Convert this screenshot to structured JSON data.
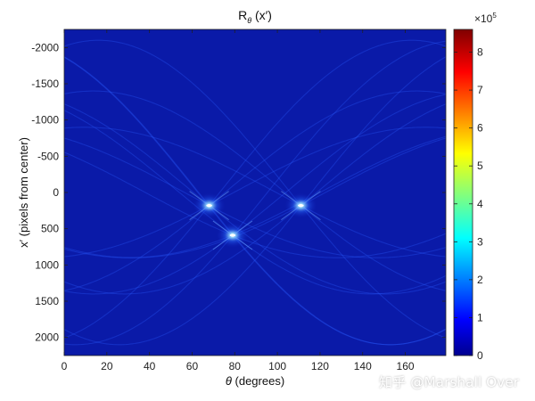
{
  "chart_data": {
    "type": "heatmap",
    "title": "R",
    "title_subscript": "θ",
    "title_suffix": " (x′)",
    "xlabel_symbol": "θ",
    "xlabel_rest": " (degrees)",
    "ylabel": "x′ (pixels from center)",
    "x_ticks": [
      "0",
      "20",
      "40",
      "60",
      "80",
      "100",
      "120",
      "140",
      "160"
    ],
    "y_ticks": [
      "-2000",
      "-1500",
      "-1000",
      "-500",
      "0",
      "500",
      "1000",
      "1500",
      "2000"
    ],
    "xlim": [
      0,
      179
    ],
    "ylim": [
      -2250,
      2250
    ],
    "y_reversed": true,
    "colorbar": {
      "colormap": "jet",
      "ticks": [
        "0",
        "1",
        "2",
        "3",
        "4",
        "5",
        "6",
        "7",
        "8"
      ],
      "range": [
        0,
        8.6
      ],
      "exponent_base": "×10",
      "exponent": "5"
    },
    "peaks": [
      {
        "theta": 68,
        "x": 180,
        "value": 4.5
      },
      {
        "theta": 111,
        "x": 180,
        "value": 4.5
      },
      {
        "theta": 79,
        "x": 590,
        "value": 4.5
      }
    ]
  },
  "watermark": "知乎 @Marshall Over",
  "colors": {
    "background": "#ffffff",
    "plot_fill": "#0a1aa8",
    "highlight": "#ffffff"
  }
}
